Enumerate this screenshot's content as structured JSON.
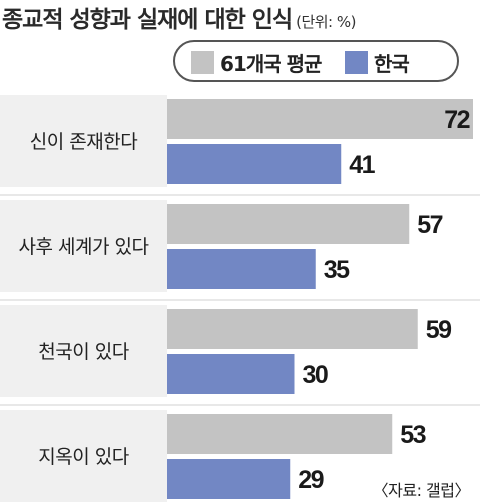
{
  "title": "종교적 성향과 실재에 대한 인식",
  "unit": "(단위: %)",
  "source": "〈자료: 갤럽〉",
  "colors": {
    "label_bg": "#f0f0f0",
    "avg_bar": "#c3c3c3",
    "korea_bar": "#7287c4",
    "divider": "#d0d0d0"
  },
  "chart_data": {
    "type": "bar",
    "orientation": "horizontal",
    "categories": [
      "신이 존재한다",
      "사후 세계가 있다",
      "천국이 있다",
      "지옥이 있다"
    ],
    "series": [
      {
        "name": "61개국 평균",
        "values": [
          72,
          57,
          59,
          53
        ]
      },
      {
        "name": "한국",
        "values": [
          41,
          35,
          30,
          29
        ]
      }
    ],
    "xlim": [
      0,
      72
    ],
    "grid": false,
    "legend": "top-right"
  }
}
